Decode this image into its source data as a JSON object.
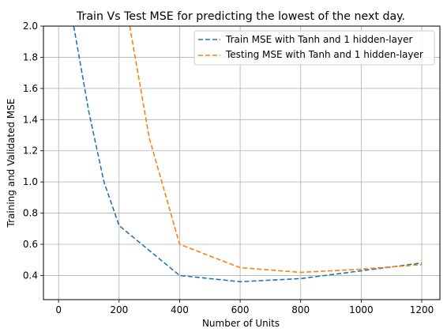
{
  "chart_data": {
    "type": "line",
    "title": "Train Vs Test MSE for predicting the lowest of the next day.",
    "xlabel": "Number of Units",
    "ylabel": "Training and Validated MSE",
    "xlim": [
      -50,
      1260
    ],
    "ylim": [
      0.245,
      2.0
    ],
    "xticks": [
      0,
      200,
      400,
      600,
      800,
      1000,
      1200
    ],
    "yticks": [
      0.4,
      0.6,
      0.8,
      1.0,
      1.2,
      1.4,
      1.6,
      1.8,
      2.0
    ],
    "xtick_labels": [
      "0",
      "200",
      "400",
      "600",
      "800",
      "1000",
      "1200"
    ],
    "ytick_labels": [
      "0.4",
      "0.6",
      "0.8",
      "1.0",
      "1.2",
      "1.4",
      "1.6",
      "1.8",
      "2.0"
    ],
    "grid": true,
    "legend_position": "top-right",
    "series": [
      {
        "name": "Train MSE with Tanh and 1 hidden-layer",
        "color": "#1f77b4",
        "linestyle": "dashed",
        "x": [
          50,
          100,
          150,
          200,
          400,
          600,
          800,
          1000,
          1200
        ],
        "y": [
          2.0,
          1.45,
          1.0,
          0.72,
          0.4,
          0.36,
          0.38,
          0.43,
          0.48
        ]
      },
      {
        "name": "Testing MSE with Tanh and 1 hidden-layer",
        "color": "#ff7f0e",
        "linestyle": "dashed",
        "x": [
          235,
          300,
          400,
          600,
          800,
          1000,
          1200
        ],
        "y": [
          2.0,
          1.28,
          0.6,
          0.45,
          0.42,
          0.44,
          0.47
        ]
      }
    ]
  }
}
